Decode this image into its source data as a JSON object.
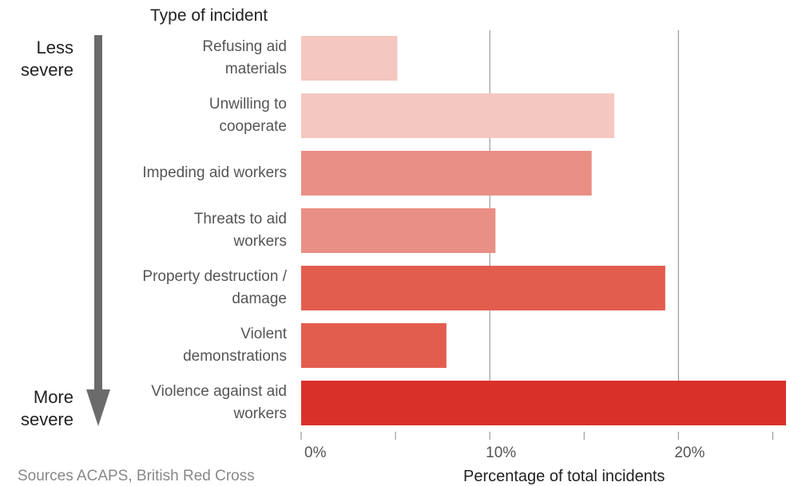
{
  "chart_data": {
    "type": "bar",
    "orientation": "horizontal",
    "title": "Type of incident",
    "xlabel": "Percentage of total incidents",
    "categories": [
      [
        "Refusing aid",
        "materials"
      ],
      [
        "Unwilling to",
        "cooperate"
      ],
      [
        "Impeding aid workers"
      ],
      [
        "Threats to aid",
        "workers"
      ],
      [
        "Property destruction /",
        "damage"
      ],
      [
        "Violent",
        "demonstrations"
      ],
      [
        "Violence against aid",
        "workers"
      ]
    ],
    "values": [
      5.1,
      16.6,
      15.4,
      10.3,
      19.3,
      7.7,
      25.7
    ],
    "colors": [
      "#f5c7c1",
      "#f5c7c1",
      "#e98f85",
      "#e98f85",
      "#e35d4f",
      "#e35d4f",
      "#d9312a"
    ],
    "xlim": [
      0,
      25.7
    ],
    "ticks": [
      0,
      10,
      20
    ],
    "tick_labels": [
      "0%",
      "10%",
      "20%"
    ],
    "minor_ticks": [
      0,
      5,
      10,
      15,
      20,
      25
    ],
    "grid": true,
    "severity_axis": {
      "top_label": [
        "Less",
        "severe"
      ],
      "bottom_label": [
        "More",
        "severe"
      ]
    },
    "source": "Sources ACAPS, British Red Cross"
  }
}
